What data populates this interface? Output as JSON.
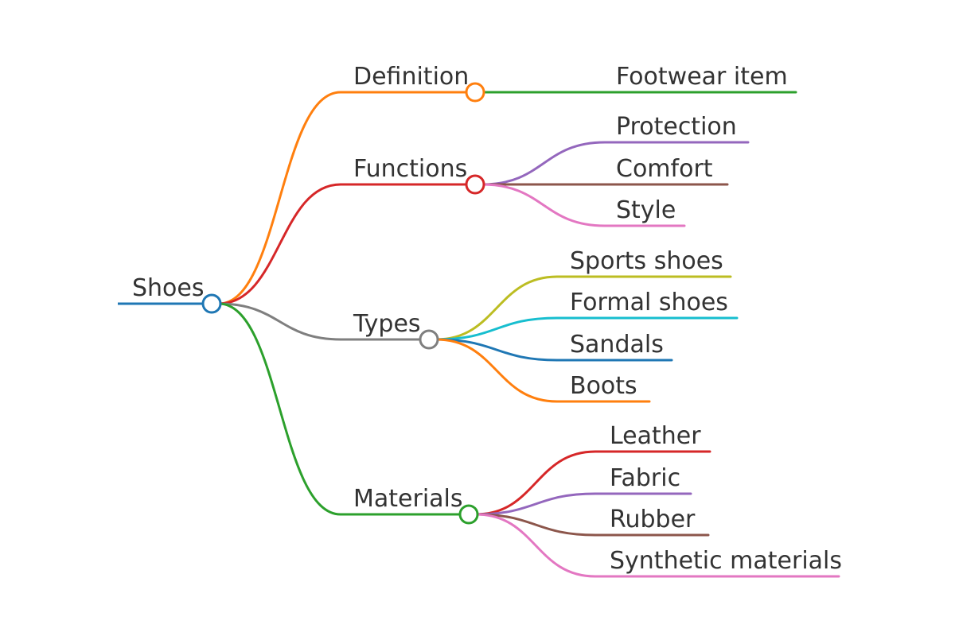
{
  "root": {
    "label": "Shoes",
    "color": "#1f77b4",
    "children": [
      {
        "label": "Definition",
        "color": "#ff7f0e",
        "children": [
          {
            "label": "Footwear item",
            "color": "#2ca02c"
          }
        ]
      },
      {
        "label": "Functions",
        "color": "#d62728",
        "children": [
          {
            "label": "Protection",
            "color": "#9467bd"
          },
          {
            "label": "Comfort",
            "color": "#8c564b"
          },
          {
            "label": "Style",
            "color": "#e377c2"
          }
        ]
      },
      {
        "label": "Types",
        "color": "#7f7f7f",
        "children": [
          {
            "label": "Sports shoes",
            "color": "#bcbd22"
          },
          {
            "label": "Formal shoes",
            "color": "#17becf"
          },
          {
            "label": "Sandals",
            "color": "#1f77b4"
          },
          {
            "label": "Boots",
            "color": "#ff7f0e"
          }
        ]
      },
      {
        "label": "Materials",
        "color": "#2ca02c",
        "children": [
          {
            "label": "Leather",
            "color": "#d62728"
          },
          {
            "label": "Fabric",
            "color": "#9467bd"
          },
          {
            "label": "Rubber",
            "color": "#8c564b"
          },
          {
            "label": "Synthetic materials",
            "color": "#e377c2"
          }
        ]
      }
    ]
  }
}
